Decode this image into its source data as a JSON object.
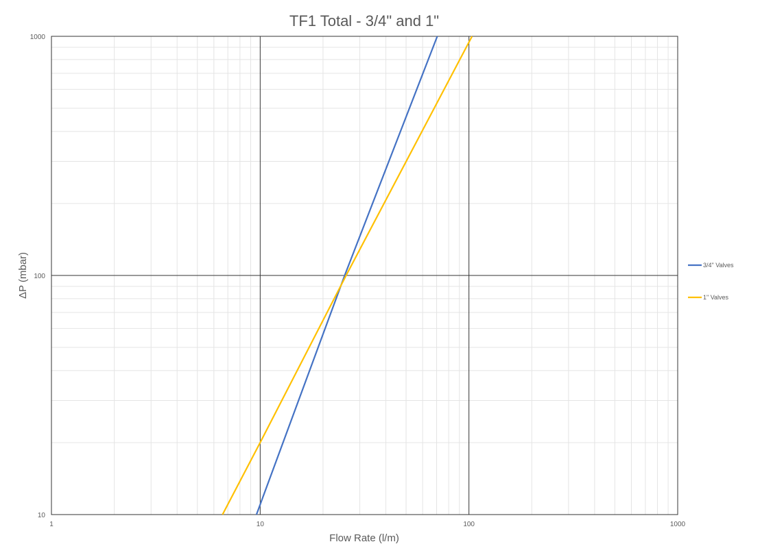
{
  "chart_data": {
    "type": "line",
    "title": "TF1 Total - 3/4\" and 1\"",
    "xlabel": "Flow Rate (l/m)",
    "ylabel": "ΔP (mbar)",
    "x_scale": "log",
    "y_scale": "log",
    "xlim": [
      1,
      1000
    ],
    "ylim": [
      10,
      1000
    ],
    "x_ticks": [
      "1",
      "10",
      "100",
      "1000"
    ],
    "y_ticks": [
      "10",
      "100",
      "1000"
    ],
    "grid": true,
    "legend_position": "right",
    "series": [
      {
        "name": "3/4\" Valves",
        "color": "#4472C4",
        "x": [
          9.6,
          25.4,
          70.5
        ],
        "y": [
          10,
          100,
          1000
        ]
      },
      {
        "name": "1\" Valves",
        "color": "#FFC000",
        "x": [
          6.6,
          10,
          25.8,
          103.5
        ],
        "y": [
          10,
          20,
          100,
          1000
        ]
      }
    ]
  }
}
